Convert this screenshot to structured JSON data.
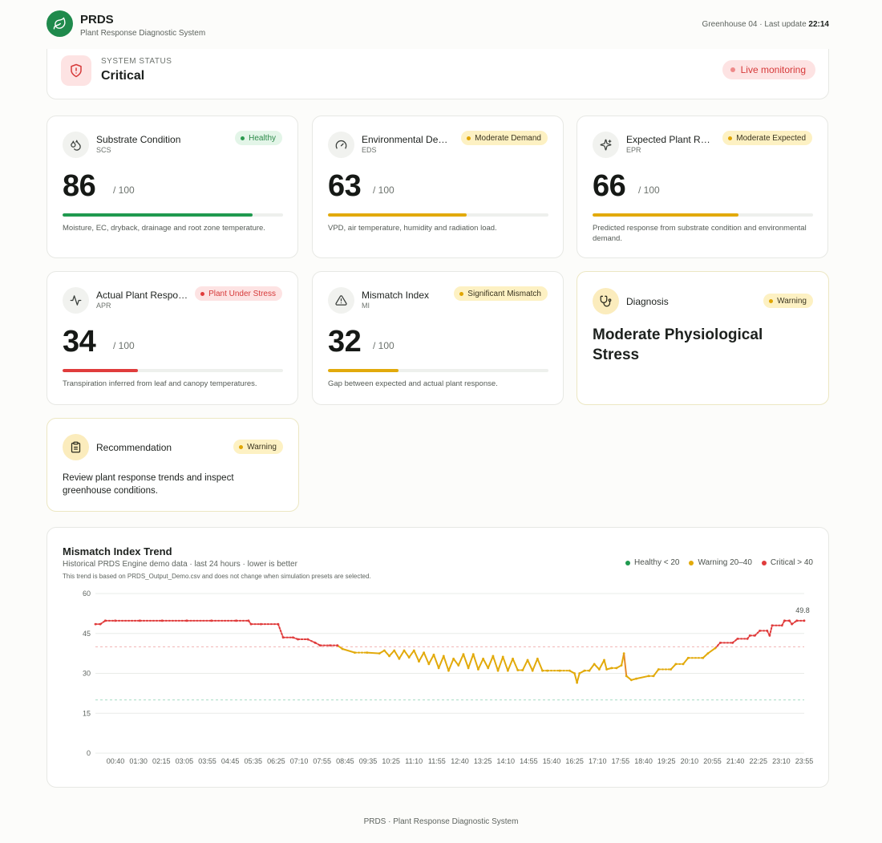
{
  "header": {
    "app_name": "PRDS",
    "app_subtitle": "Plant Response Diagnostic System",
    "location": "Greenhouse 04 · Last update",
    "last_update": "22:14"
  },
  "status": {
    "label": "SYSTEM STATUS",
    "value": "Critical",
    "live_label": "Live monitoring",
    "icon": "shield-alert-icon"
  },
  "metrics": [
    {
      "title": "Substrate Condition",
      "code": "SCS",
      "value": "86",
      "max": "/ 100",
      "fill": 86,
      "badge": "Healthy",
      "desc": "Moisture, EC, dryback, drainage and root zone temperature.",
      "icon": "droplets-icon",
      "color": "#1f9a4f"
    },
    {
      "title": "Environmental Demand",
      "code": "EDS",
      "value": "63",
      "max": "/ 100",
      "fill": 63,
      "badge": "Moderate Demand",
      "desc": "VPD, air temperature, humidity and radiation load.",
      "icon": "gauge-icon",
      "color": "#e2aa0b"
    },
    {
      "title": "Expected Plant Response",
      "code": "EPR",
      "value": "66",
      "max": "/ 100",
      "fill": 66,
      "badge": "Moderate Expected",
      "desc": "Predicted response from substrate condition and environmental demand.",
      "icon": "sparkles-icon",
      "color": "#e2aa0b"
    },
    {
      "title": "Actual Plant Response",
      "code": "APR",
      "value": "34",
      "max": "/ 100",
      "fill": 34,
      "badge": "Plant Under Stress",
      "desc": "Transpiration inferred from leaf and canopy temperatures.",
      "icon": "activity-icon",
      "color": "#e03c3c"
    },
    {
      "title": "Mismatch Index",
      "code": "MI",
      "value": "32",
      "max": "/ 100",
      "fill": 32,
      "badge": "Significant Mismatch",
      "desc": "Gap between expected and actual plant response.",
      "icon": "warning-triangle-icon",
      "color": "#e2aa0b"
    }
  ],
  "diagnosis": {
    "label": "Diagnosis",
    "badge": "Warning",
    "value": "Moderate Physiological Stress",
    "icon": "stethoscope-icon"
  },
  "recommendation": {
    "label": "Recommendation",
    "badge": "Warning",
    "text": "Review plant response trends and inspect greenhouse conditions.",
    "icon": "clipboard-icon"
  },
  "trend": {
    "title": "Mismatch Index Trend",
    "subtitle": "Historical PRDS Engine demo data · last 24 hours · lower is better",
    "note": "This trend is based on PRDS_Output_Demo.csv and does not change when simulation presets are selected.",
    "legend": {
      "healthy": "Healthy < 20",
      "warning": "Warning 20–40",
      "critical": "Critical > 40"
    },
    "colors": {
      "healthy": "#1f9a4f",
      "warning": "#e2aa0b",
      "critical": "#e03c3c",
      "mid": "#e58a2a"
    }
  },
  "chart_data": {
    "type": "line",
    "title": "Mismatch Index Trend",
    "ylim": [
      0,
      60
    ],
    "yticks": [
      0,
      15,
      30,
      45,
      60
    ],
    "thresholds": [
      20,
      40
    ],
    "x_tick_labels": [
      "00:40",
      "01:30",
      "02:15",
      "03:05",
      "03:55",
      "04:45",
      "05:35",
      "06:25",
      "07:10",
      "07:55",
      "08:45",
      "09:35",
      "10:25",
      "11:10",
      "11:55",
      "12:40",
      "13:25",
      "14:10",
      "14:55",
      "15:40",
      "16:25",
      "17:10",
      "17:55",
      "18:40",
      "19:25",
      "20:10",
      "20:55",
      "21:40",
      "22:25",
      "23:10",
      "23:55"
    ],
    "last_value_label": "49.8",
    "points": [
      [
        "00:00",
        48.5
      ],
      [
        "00:10",
        48.5
      ],
      [
        "00:20",
        49.8
      ],
      [
        "00:40",
        49.8
      ],
      [
        "01:30",
        49.8
      ],
      [
        "02:15",
        49.8
      ],
      [
        "03:05",
        49.8
      ],
      [
        "03:55",
        49.8
      ],
      [
        "04:45",
        49.8
      ],
      [
        "05:10",
        49.8
      ],
      [
        "05:15",
        48.5
      ],
      [
        "05:35",
        48.5
      ],
      [
        "06:10",
        48.5
      ],
      [
        "06:20",
        43.5
      ],
      [
        "06:40",
        43.5
      ],
      [
        "06:50",
        42.8
      ],
      [
        "07:10",
        42.8
      ],
      [
        "07:25",
        41.5
      ],
      [
        "07:35",
        40.5
      ],
      [
        "07:55",
        40.5
      ],
      [
        "08:10",
        40.5
      ],
      [
        "08:20",
        39.2
      ],
      [
        "08:45",
        37.8
      ],
      [
        "09:10",
        37.8
      ],
      [
        "09:35",
        37.5
      ],
      [
        "09:45",
        38.6
      ],
      [
        "09:55",
        36.5
      ],
      [
        "10:05",
        38.6
      ],
      [
        "10:15",
        35.5
      ],
      [
        "10:25",
        38.6
      ],
      [
        "10:35",
        36.0
      ],
      [
        "10:45",
        38.6
      ],
      [
        "10:55",
        34.5
      ],
      [
        "11:05",
        37.8
      ],
      [
        "11:15",
        33.5
      ],
      [
        "11:25",
        37.0
      ],
      [
        "11:35",
        32.0
      ],
      [
        "11:45",
        36.5
      ],
      [
        "11:55",
        31.0
      ],
      [
        "12:05",
        35.5
      ],
      [
        "12:15",
        33.0
      ],
      [
        "12:25",
        37.2
      ],
      [
        "12:35",
        32.0
      ],
      [
        "12:45",
        37.2
      ],
      [
        "12:55",
        31.5
      ],
      [
        "13:05",
        35.5
      ],
      [
        "13:15",
        32.0
      ],
      [
        "13:25",
        36.5
      ],
      [
        "13:35",
        31.0
      ],
      [
        "13:45",
        36.2
      ],
      [
        "13:55",
        31.0
      ],
      [
        "14:05",
        35.5
      ],
      [
        "14:15",
        31.2
      ],
      [
        "14:25",
        31.2
      ],
      [
        "14:35",
        35.0
      ],
      [
        "14:45",
        31.0
      ],
      [
        "14:55",
        35.5
      ],
      [
        "15:05",
        31.0
      ],
      [
        "15:15",
        31.0
      ],
      [
        "15:40",
        31.0
      ],
      [
        "16:00",
        31.0
      ],
      [
        "16:10",
        30.0
      ],
      [
        "16:15",
        26.5
      ],
      [
        "16:20",
        30.0
      ],
      [
        "16:30",
        31.0
      ],
      [
        "16:40",
        31.0
      ],
      [
        "16:50",
        33.5
      ],
      [
        "17:00",
        31.5
      ],
      [
        "17:10",
        35.0
      ],
      [
        "17:15",
        31.5
      ],
      [
        "17:25",
        32.0
      ],
      [
        "17:35",
        32.0
      ],
      [
        "17:45",
        33.0
      ],
      [
        "17:50",
        37.5
      ],
      [
        "17:55",
        29.0
      ],
      [
        "18:05",
        27.5
      ],
      [
        "18:15",
        28.0
      ],
      [
        "18:40",
        29.0
      ],
      [
        "18:50",
        29.0
      ],
      [
        "19:00",
        31.5
      ],
      [
        "19:25",
        31.5
      ],
      [
        "19:35",
        33.5
      ],
      [
        "19:50",
        33.5
      ],
      [
        "20:00",
        35.8
      ],
      [
        "20:30",
        35.8
      ],
      [
        "20:40",
        37.5
      ],
      [
        "20:55",
        39.5
      ],
      [
        "21:05",
        41.5
      ],
      [
        "21:30",
        41.5
      ],
      [
        "21:40",
        43.0
      ],
      [
        "22:00",
        43.0
      ],
      [
        "22:05",
        44.2
      ],
      [
        "22:15",
        44.2
      ],
      [
        "22:25",
        46.0
      ],
      [
        "22:40",
        46.0
      ],
      [
        "22:45",
        44.2
      ],
      [
        "22:50",
        48.0
      ],
      [
        "23:10",
        48.0
      ],
      [
        "23:15",
        49.8
      ],
      [
        "23:25",
        49.8
      ],
      [
        "23:30",
        48.5
      ],
      [
        "23:40",
        49.8
      ],
      [
        "23:55",
        49.8
      ]
    ]
  },
  "footer": {
    "text": "PRDS · Plant Response Diagnostic System"
  }
}
